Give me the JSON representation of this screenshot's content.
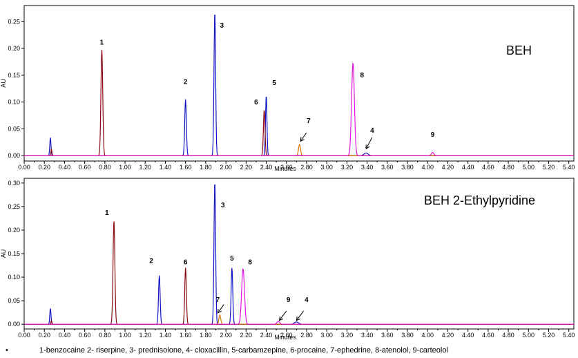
{
  "chart_data": [
    {
      "type": "line",
      "title": "BEH",
      "xlabel": "Minutes",
      "ylabel": "AU",
      "xlim": [
        0.0,
        5.45
      ],
      "ylim": [
        -0.01,
        0.28
      ],
      "x_ticks": [
        "0.00",
        "0.20",
        "0.40",
        "0.60",
        "0.80",
        "1.00",
        "1.20",
        "1.40",
        "1.60",
        "1.80",
        "2.00",
        "2.20",
        "2.40",
        "2.60",
        "2.80",
        "3.00",
        "3.20",
        "3.40",
        "3.60",
        "3.80",
        "4.00",
        "4.20",
        "4.40",
        "4.60",
        "4.80",
        "5.00",
        "5.20",
        "5.40"
      ],
      "y_ticks": [
        "0.00",
        "0.05",
        "0.10",
        "0.15",
        "0.20",
        "0.25"
      ],
      "series": [
        {
          "color": "#1414c8",
          "peaks": [
            {
              "x": 0.26,
              "h": 0.034,
              "w": 0.006
            },
            {
              "x": 1.6,
              "h": 0.105,
              "w": 0.008
            },
            {
              "x": 1.89,
              "h": 0.27,
              "w": 0.008
            },
            {
              "x": 2.4,
              "h": 0.113,
              "w": 0.007
            },
            {
              "x": 3.39,
              "h": 0.005,
              "w": 0.02
            }
          ]
        },
        {
          "color": "#8c0a14",
          "peaks": [
            {
              "x": 0.27,
              "h": 0.012,
              "w": 0.005
            },
            {
              "x": 0.77,
              "h": 0.198,
              "w": 0.009
            },
            {
              "x": 2.38,
              "h": 0.086,
              "w": 0.008
            }
          ]
        },
        {
          "color": "#e0780a",
          "peaks": [
            {
              "x": 2.73,
              "h": 0.021,
              "w": 0.01
            }
          ]
        },
        {
          "color": "#dc14dc",
          "peaks": [
            {
              "x": 3.26,
              "h": 0.173,
              "w": 0.014
            },
            {
              "x": 4.05,
              "h": 0.006,
              "w": 0.012
            }
          ]
        }
      ],
      "peak_labels": [
        {
          "text": "1",
          "x": 0.77,
          "y": 0.207
        },
        {
          "text": "2",
          "x": 1.6,
          "y": 0.134
        },
        {
          "text": "3",
          "x": 1.96,
          "y": 0.239
        },
        {
          "text": "5",
          "x": 2.48,
          "y": 0.132
        },
        {
          "text": "6",
          "x": 2.3,
          "y": 0.096
        },
        {
          "text": "7",
          "x": 2.82,
          "y": 0.061
        },
        {
          "text": "8",
          "x": 3.35,
          "y": 0.146
        },
        {
          "text": "4",
          "x": 3.45,
          "y": 0.043
        },
        {
          "text": "9",
          "x": 4.05,
          "y": 0.035
        }
      ],
      "arrows": [
        {
          "from": [
            2.8,
            0.043
          ],
          "to": [
            2.74,
            0.027
          ]
        },
        {
          "from": [
            3.45,
            0.034
          ],
          "to": [
            3.39,
            0.013
          ]
        }
      ]
    },
    {
      "type": "line",
      "title": "BEH 2-Ethylpyridine",
      "xlabel": "Minutes",
      "ylabel": "AU",
      "xlim": [
        0.0,
        5.45
      ],
      "ylim": [
        -0.01,
        0.31
      ],
      "x_ticks": [
        "0.00",
        "0.20",
        "0.40",
        "0.60",
        "0.80",
        "1.00",
        "1.20",
        "1.40",
        "1.60",
        "1.80",
        "2.00",
        "2.20",
        "2.40",
        "2.60",
        "2.80",
        "3.00",
        "3.20",
        "3.40",
        "3.60",
        "3.80",
        "4.00",
        "4.20",
        "4.40",
        "4.60",
        "4.80",
        "5.00",
        "5.20",
        "5.40"
      ],
      "y_ticks": [
        "0.00",
        "0.05",
        "0.10",
        "0.15",
        "0.20",
        "0.25",
        "0.30"
      ],
      "series": [
        {
          "color": "#1414c8",
          "peaks": [
            {
              "x": 0.26,
              "h": 0.034,
              "w": 0.006
            },
            {
              "x": 1.34,
              "h": 0.104,
              "w": 0.008
            },
            {
              "x": 1.89,
              "h": 0.305,
              "w": 0.008
            },
            {
              "x": 2.06,
              "h": 0.12,
              "w": 0.008
            },
            {
              "x": 2.7,
              "h": 0.005,
              "w": 0.02
            }
          ]
        },
        {
          "color": "#8c0a14",
          "peaks": [
            {
              "x": 0.27,
              "h": 0.008,
              "w": 0.005
            },
            {
              "x": 0.89,
              "h": 0.221,
              "w": 0.009
            },
            {
              "x": 1.6,
              "h": 0.12,
              "w": 0.008
            }
          ]
        },
        {
          "color": "#e0780a",
          "peaks": [
            {
              "x": 1.94,
              "h": 0.02,
              "w": 0.009
            }
          ]
        },
        {
          "color": "#dc14dc",
          "peaks": [
            {
              "x": 2.17,
              "h": 0.118,
              "w": 0.014
            },
            {
              "x": 2.52,
              "h": 0.006,
              "w": 0.014
            }
          ]
        }
      ],
      "peak_labels": [
        {
          "text": "1",
          "x": 0.82,
          "y": 0.232
        },
        {
          "text": "2",
          "x": 1.26,
          "y": 0.13
        },
        {
          "text": "6",
          "x": 1.6,
          "y": 0.127
        },
        {
          "text": "3",
          "x": 1.97,
          "y": 0.248
        },
        {
          "text": "5",
          "x": 2.06,
          "y": 0.135
        },
        {
          "text": "8",
          "x": 2.24,
          "y": 0.127
        },
        {
          "text": "7",
          "x": 1.92,
          "y": 0.047
        },
        {
          "text": "9",
          "x": 2.62,
          "y": 0.047
        },
        {
          "text": "4",
          "x": 2.8,
          "y": 0.047
        }
      ],
      "arrows": [
        {
          "from": [
            1.98,
            0.042
          ],
          "to": [
            1.92,
            0.024
          ]
        },
        {
          "from": [
            2.6,
            0.028
          ],
          "to": [
            2.53,
            0.008
          ]
        },
        {
          "from": [
            2.77,
            0.028
          ],
          "to": [
            2.7,
            0.008
          ]
        }
      ]
    }
  ],
  "caption": {
    "bullet": "•",
    "text": "1-benzocaine 2- riserpine, 3- prednisolone, 4- cloxacillin,  5-carbamzepine, 6-procaine, 7-ephedrine, 8-atenolol, 9-carteolol"
  }
}
